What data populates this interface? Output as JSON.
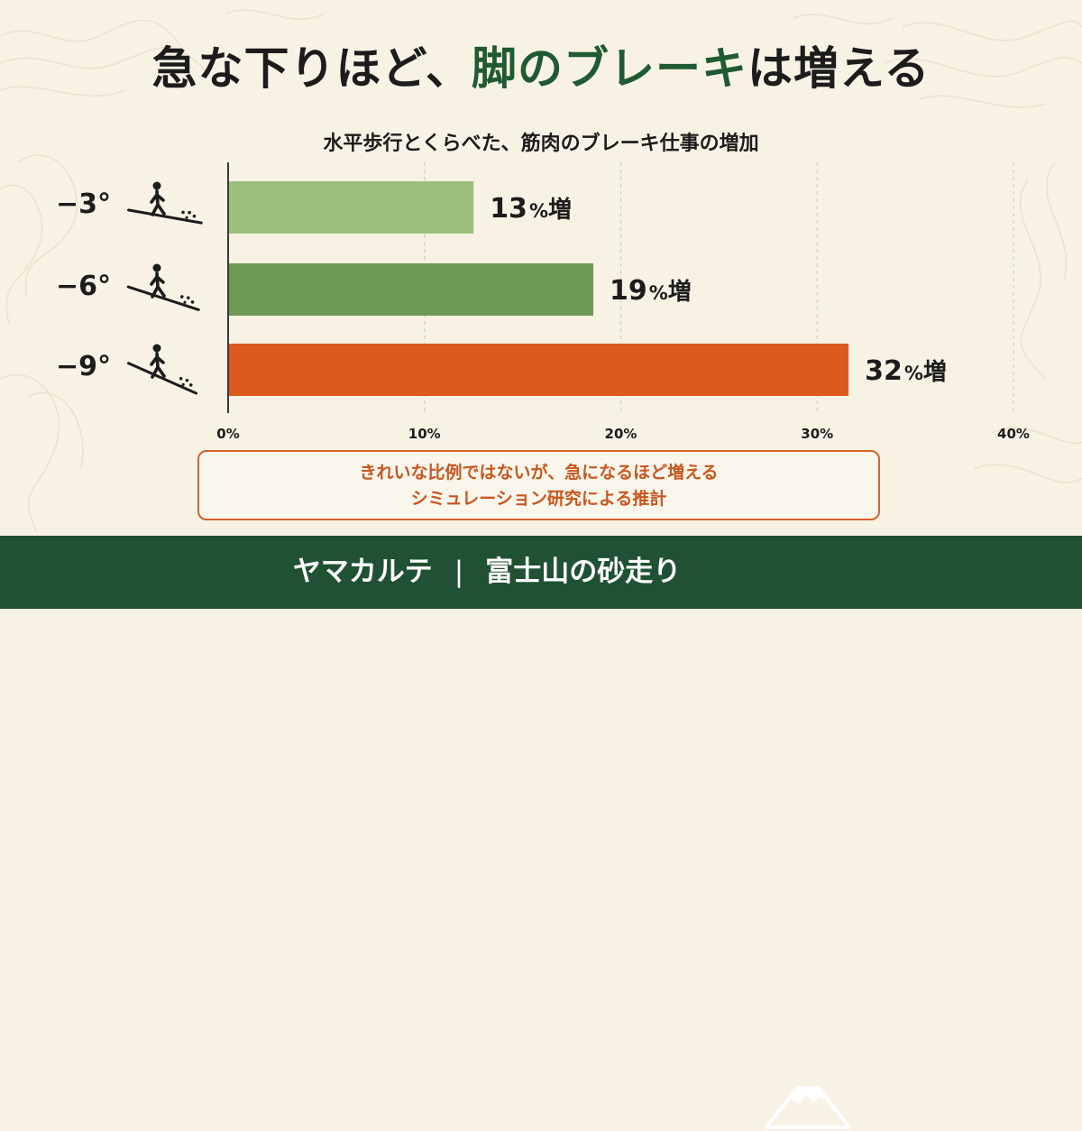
{
  "title": {
    "pre": "急な下りほど、",
    "highlight": "脚のブレーキ",
    "post": "は増える"
  },
  "chart_data": {
    "type": "bar",
    "orientation": "horizontal",
    "title": "水平歩行とくらべた、筋肉のブレーキ仕事の増加",
    "categories": [
      "−3°",
      "−6°",
      "−9°"
    ],
    "values": [
      12.5,
      18.6,
      31.6
    ],
    "value_labels": [
      "13",
      "19",
      "32"
    ],
    "value_unit": "%",
    "value_suffix": "増",
    "bar_colors": [
      "#9dbf7d",
      "#6b9a55",
      "#dc5a1e"
    ],
    "xlim": [
      0,
      40
    ],
    "xticks": [
      0,
      10,
      20,
      30,
      40
    ],
    "xtick_labels": [
      "0%",
      "10%",
      "20%",
      "30%",
      "40%"
    ],
    "grid": true,
    "category_icons": [
      "hiker-downhill-icon",
      "hiker-downhill-icon",
      "hiker-downhill-icon"
    ]
  },
  "note": {
    "line1": "きれいな比例ではないが、急になるほど増える",
    "line2": "シミュレーション研究による推計"
  },
  "footer": {
    "brand": "ヤマカルテ",
    "separator": "|",
    "topic": "富士山の砂走り",
    "icon": "mountain-icon"
  }
}
